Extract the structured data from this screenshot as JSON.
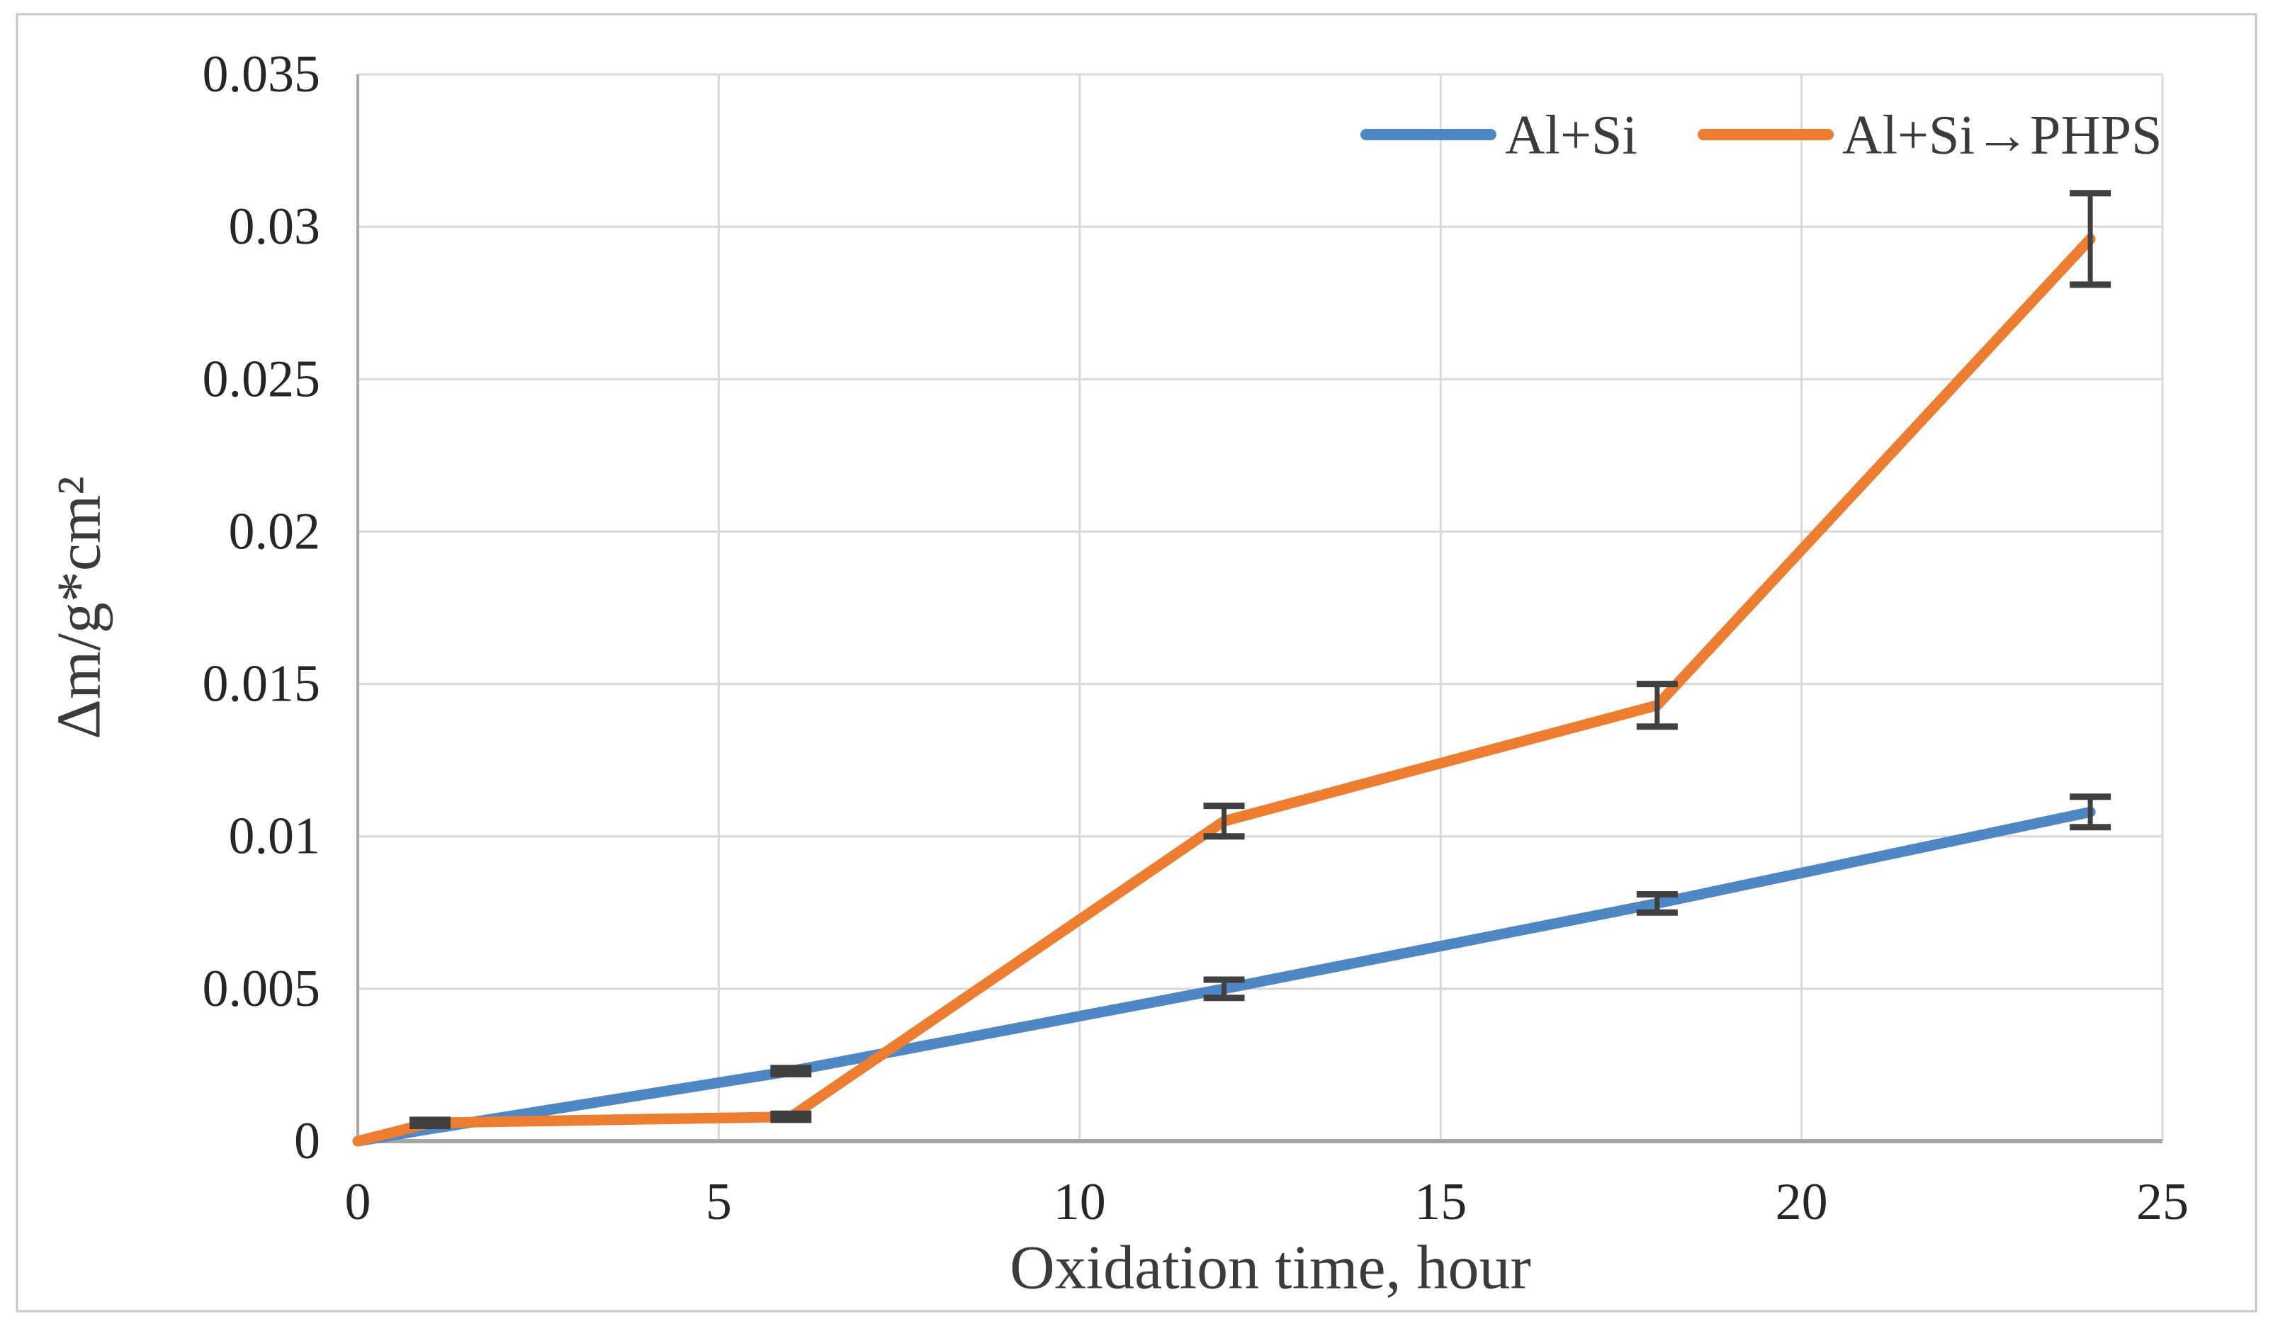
{
  "figure": {
    "background": "#ffffff",
    "border_color": "#c9c9c9"
  },
  "chart_data": {
    "type": "line",
    "title": "",
    "xlabel": "Oxidation time, hour",
    "ylabel": "Δm/g*cm²",
    "xlim": [
      0,
      25
    ],
    "ylim": [
      0,
      0.035
    ],
    "grid": true,
    "legend_position": "top-right-inside",
    "x_ticks": [
      {
        "value": 0,
        "label": "0"
      },
      {
        "value": 5,
        "label": "5"
      },
      {
        "value": 10,
        "label": "10"
      },
      {
        "value": 15,
        "label": "15"
      },
      {
        "value": 20,
        "label": "20"
      },
      {
        "value": 25,
        "label": "25"
      }
    ],
    "y_ticks": [
      {
        "value": 0,
        "label": "0"
      },
      {
        "value": 0.005,
        "label": "0.005"
      },
      {
        "value": 0.01,
        "label": "0.01"
      },
      {
        "value": 0.015,
        "label": "0.015"
      },
      {
        "value": 0.02,
        "label": "0.02"
      },
      {
        "value": 0.025,
        "label": "0.025"
      },
      {
        "value": 0.03,
        "label": "0.03"
      },
      {
        "value": 0.035,
        "label": "0.035"
      }
    ],
    "series": [
      {
        "name": "Al+Si",
        "color": "#4F87C5",
        "x": [
          0,
          1,
          6,
          12,
          18,
          24
        ],
        "y": [
          0,
          0.0004,
          0.0023,
          0.005,
          0.0078,
          0.0108
        ],
        "y_err": [
          0,
          0,
          0.0001,
          0.0003,
          0.0003,
          0.0005
        ]
      },
      {
        "name": "Al+Si→PHPS",
        "color": "#ED7D31",
        "x": [
          0,
          1,
          6,
          12,
          18,
          24
        ],
        "y": [
          0,
          0.0006,
          0.0008,
          0.0105,
          0.0143,
          0.0296
        ],
        "y_err": [
          0,
          0.0001,
          0.0001,
          0.0005,
          0.0007,
          0.0015
        ]
      }
    ],
    "colors": {
      "gridline": "#D9D9D9",
      "axis_line": "#A6A6A6",
      "error_bar": "#404040",
      "tick_label": "#262626",
      "axis_title": "#3B3B3B",
      "legend_text": "#3B3B3B"
    }
  }
}
